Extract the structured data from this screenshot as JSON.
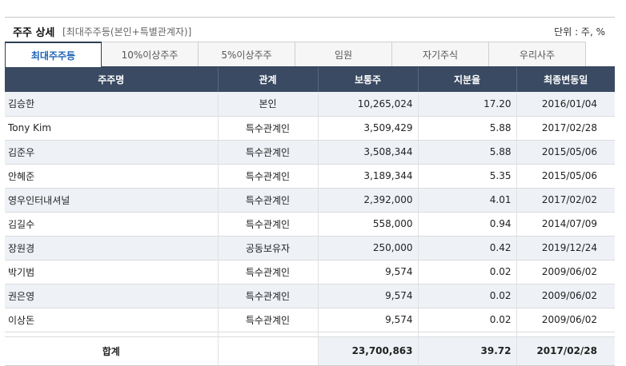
{
  "header": {
    "title": "주주 상세",
    "subtitle": "[최대주주등(본인+특별관계자)]",
    "unit": "단위 : 주, %"
  },
  "tabs": [
    {
      "label": "최대주주등",
      "active": true
    },
    {
      "label": "10%이상주주",
      "active": false
    },
    {
      "label": "5%이상주주",
      "active": false
    },
    {
      "label": "임원",
      "active": false
    },
    {
      "label": "자기주식",
      "active": false
    },
    {
      "label": "우리사주",
      "active": false
    }
  ],
  "table": {
    "columns": [
      "주주명",
      "관계",
      "보통주",
      "지분율",
      "최종변동일"
    ],
    "rows": [
      {
        "name": "김승한",
        "relation": "본인",
        "shares": "10,265,024",
        "ratio": "17.20",
        "date": "2016/01/04"
      },
      {
        "name": "Tony Kim",
        "relation": "특수관계인",
        "shares": "3,509,429",
        "ratio": "5.88",
        "date": "2017/02/28"
      },
      {
        "name": "김준우",
        "relation": "특수관계인",
        "shares": "3,508,344",
        "ratio": "5.88",
        "date": "2015/05/06"
      },
      {
        "name": "안혜준",
        "relation": "특수관계인",
        "shares": "3,189,344",
        "ratio": "5.35",
        "date": "2015/05/06"
      },
      {
        "name": "영우인터내셔널",
        "relation": "특수관계인",
        "shares": "2,392,000",
        "ratio": "4.01",
        "date": "2017/02/02"
      },
      {
        "name": "김길수",
        "relation": "특수관계인",
        "shares": "558,000",
        "ratio": "0.94",
        "date": "2014/07/09"
      },
      {
        "name": "장원경",
        "relation": "공동보유자",
        "shares": "250,000",
        "ratio": "0.42",
        "date": "2019/12/24"
      },
      {
        "name": "박기범",
        "relation": "특수관계인",
        "shares": "9,574",
        "ratio": "0.02",
        "date": "2009/06/02"
      },
      {
        "name": "권은영",
        "relation": "특수관계인",
        "shares": "9,574",
        "ratio": "0.02",
        "date": "2009/06/02"
      },
      {
        "name": "이상돈",
        "relation": "특수관계인",
        "shares": "9,574",
        "ratio": "0.02",
        "date": "2009/06/02"
      }
    ],
    "total": {
      "label": "합계",
      "shares": "23,700,863",
      "ratio": "39.72",
      "date": "2017/02/28"
    }
  }
}
